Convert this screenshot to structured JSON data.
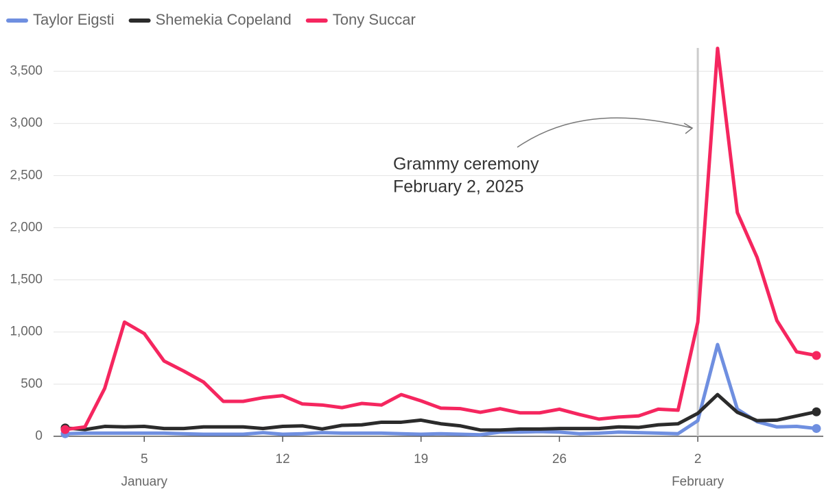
{
  "chart_data": {
    "type": "line",
    "x": [
      "2025-01-01",
      "2025-01-02",
      "2025-01-03",
      "2025-01-04",
      "2025-01-05",
      "2025-01-06",
      "2025-01-07",
      "2025-01-08",
      "2025-01-09",
      "2025-01-10",
      "2025-01-11",
      "2025-01-12",
      "2025-01-13",
      "2025-01-14",
      "2025-01-15",
      "2025-01-16",
      "2025-01-17",
      "2025-01-18",
      "2025-01-19",
      "2025-01-20",
      "2025-01-21",
      "2025-01-22",
      "2025-01-23",
      "2025-01-24",
      "2025-01-25",
      "2025-01-26",
      "2025-01-27",
      "2025-01-28",
      "2025-01-29",
      "2025-01-30",
      "2025-01-31",
      "2025-02-01",
      "2025-02-02",
      "2025-02-03",
      "2025-02-04",
      "2025-02-05",
      "2025-02-06",
      "2025-02-07",
      "2025-02-08"
    ],
    "series": [
      {
        "name": "Taylor Eigsti",
        "color": "#6f8fe0",
        "values": [
          25,
          30,
          30,
          30,
          30,
          30,
          25,
          20,
          20,
          20,
          35,
          20,
          25,
          35,
          30,
          30,
          30,
          25,
          20,
          25,
          20,
          15,
          40,
          40,
          45,
          40,
          25,
          30,
          40,
          35,
          30,
          25,
          150,
          880,
          260,
          140,
          90,
          95,
          75
        ]
      },
      {
        "name": "Shemekia Copeland",
        "color": "#2b2b2b",
        "values": [
          80,
          65,
          95,
          90,
          95,
          75,
          75,
          90,
          90,
          90,
          75,
          95,
          100,
          70,
          105,
          110,
          135,
          135,
          155,
          120,
          100,
          60,
          60,
          70,
          70,
          75,
          75,
          75,
          90,
          85,
          110,
          120,
          220,
          400,
          230,
          150,
          155,
          195,
          235
        ]
      },
      {
        "name": "Tony Succar",
        "color": "#f5265f",
        "values": [
          65,
          90,
          460,
          1095,
          985,
          722,
          625,
          520,
          335,
          335,
          370,
          390,
          310,
          300,
          275,
          315,
          300,
          400,
          340,
          270,
          265,
          230,
          265,
          225,
          225,
          260,
          210,
          165,
          185,
          195,
          260,
          250,
          1095,
          3720,
          2145,
          1715,
          1110,
          810,
          775
        ]
      }
    ],
    "xlim": [
      "2025-01-01",
      "2025-02-08"
    ],
    "xticks": [
      {
        "value": "2025-01-05",
        "label": "5"
      },
      {
        "value": "2025-01-12",
        "label": "12"
      },
      {
        "value": "2025-01-19",
        "label": "19"
      },
      {
        "value": "2025-01-26",
        "label": "26"
      },
      {
        "value": "2025-02-02",
        "label": "2"
      }
    ],
    "x_month_labels": [
      {
        "value": "2025-01-05",
        "label": "January"
      },
      {
        "value": "2025-02-02",
        "label": "February"
      }
    ],
    "ylim": [
      0,
      3750
    ],
    "yticks": [
      0,
      500,
      {
        "value": 1000,
        "label": "1,000"
      },
      {
        "value": 1500,
        "label": "1,500"
      },
      {
        "value": 2000,
        "label": "2,000"
      },
      {
        "value": 2500,
        "label": "2,500"
      },
      {
        "value": 3000,
        "label": "3,000"
      },
      {
        "value": 3500,
        "label": "3,500"
      }
    ],
    "grid": true,
    "annotations": [
      {
        "x": "2025-02-02",
        "lines": [
          "Grammy ceremony",
          "February 2, 2025"
        ]
      }
    ]
  }
}
